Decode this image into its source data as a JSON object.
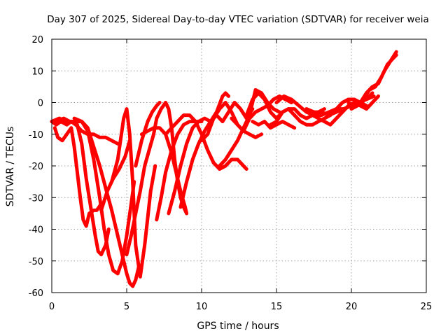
{
  "chart_data": {
    "type": "scatter",
    "title": "Day 307 of 2025, Sidereal Day-to-day VTEC variation (SDTVAR) for receiver weia",
    "xlabel": "GPS time / hours",
    "ylabel": "SDTVAR / TECUs",
    "xlim": [
      0,
      25
    ],
    "ylim": [
      -60,
      20
    ],
    "xticks": [
      "0",
      "5",
      "10",
      "15",
      "20",
      "25"
    ],
    "yticks": [
      "-60",
      "-50",
      "-40",
      "-30",
      "-20",
      "-10",
      "0",
      "10",
      "20"
    ],
    "grid": true,
    "legend": "none",
    "marker": "plus",
    "color": "#ff0000",
    "series": [
      {
        "x": [
          0.0,
          0.3,
          0.6,
          1.0,
          1.3,
          1.6,
          2.0,
          2.4,
          2.8,
          3.2,
          3.6,
          4.0,
          4.4
        ],
        "y": [
          -6,
          -7,
          -6,
          -7,
          -6,
          -7,
          -9,
          -10,
          -10,
          -11,
          -11,
          -12,
          -13
        ]
      },
      {
        "x": [
          0.2,
          0.4,
          0.7,
          1.0,
          1.3,
          1.5,
          1.7,
          1.9,
          2.1,
          2.3,
          2.5,
          2.8,
          3.0,
          3.3
        ],
        "y": [
          -8,
          -11,
          -12,
          -10,
          -8,
          -14,
          -22,
          -30,
          -37,
          -39,
          -35,
          -34,
          -34,
          -32
        ]
      },
      {
        "x": [
          0.0,
          0.5,
          1.0,
          1.4,
          1.7,
          2.0,
          2.3,
          2.6,
          2.9,
          3.1,
          3.3,
          3.6,
          3.8
        ],
        "y": [
          -6,
          -5,
          -6,
          -6,
          -7,
          -13,
          -24,
          -33,
          -42,
          -47,
          -48,
          -45,
          -40
        ]
      },
      {
        "x": [
          0.3,
          0.8,
          1.2,
          1.6,
          2.0,
          2.4,
          2.8,
          3.2,
          3.5,
          3.8,
          4.1,
          4.4,
          4.7,
          5.0,
          5.3,
          5.5
        ],
        "y": [
          -6,
          -5,
          -6,
          -6,
          -6,
          -9,
          -18,
          -30,
          -40,
          -48,
          -53,
          -54,
          -50,
          -42,
          -32,
          -25
        ]
      },
      {
        "x": [
          1.5,
          2.0,
          2.4,
          2.8,
          3.2,
          3.6,
          4.0,
          4.3,
          4.6,
          4.8,
          5.0,
          5.2,
          5.4,
          5.6,
          5.8
        ],
        "y": [
          -5,
          -6,
          -8,
          -14,
          -20,
          -27,
          -34,
          -40,
          -46,
          -50,
          -54,
          -57,
          -58,
          -56,
          -52
        ]
      },
      {
        "x": [
          3.3,
          3.7,
          4.1,
          4.5,
          4.9,
          5.2
        ],
        "y": [
          -34,
          -28,
          -24,
          -21,
          -17,
          -12
        ]
      },
      {
        "x": [
          4.0,
          4.4,
          4.8,
          5.0,
          5.2,
          5.4,
          5.6,
          5.9,
          6.2,
          6.6,
          6.9
        ],
        "y": [
          -25,
          -18,
          -5,
          -2,
          -10,
          -25,
          -45,
          -55,
          -45,
          -28,
          -20
        ]
      },
      {
        "x": [
          5.0,
          5.3,
          5.6,
          5.9,
          6.2,
          6.5,
          6.8,
          7.0,
          7.3,
          7.6,
          7.8,
          8.0,
          8.2,
          8.4,
          8.6,
          8.8,
          9.0
        ],
        "y": [
          -48,
          -42,
          -35,
          -28,
          -20,
          -15,
          -10,
          -5,
          -2,
          0,
          -2,
          -8,
          -18,
          -25,
          -30,
          -33,
          -35
        ]
      },
      {
        "x": [
          5.6,
          6.0,
          6.4,
          6.7,
          7.0,
          7.2
        ],
        "y": [
          -20,
          -12,
          -6,
          -3,
          -1,
          0
        ]
      },
      {
        "x": [
          6.0,
          6.4,
          6.8,
          7.2,
          7.6,
          8.0,
          8.3,
          8.6,
          8.9,
          9.0
        ],
        "y": [
          -10,
          -9,
          -8,
          -8,
          -10,
          -16,
          -22,
          -28,
          -33,
          -35
        ]
      },
      {
        "x": [
          7.0,
          7.3,
          7.6,
          8.0,
          8.4,
          8.8,
          9.2,
          9.6,
          10.0
        ],
        "y": [
          -37,
          -30,
          -22,
          -15,
          -10,
          -7,
          -6,
          -6,
          -6
        ]
      },
      {
        "x": [
          7.6,
          8.0,
          8.4,
          8.8,
          9.2,
          9.6,
          10.0,
          10.4,
          10.8,
          11.2,
          11.6,
          12.0,
          12.4,
          12.8,
          13.0
        ],
        "y": [
          -10,
          -8,
          -6,
          -4,
          -4,
          -6,
          -10,
          -15,
          -19,
          -21,
          -20,
          -18,
          -18,
          -20,
          -21
        ]
      },
      {
        "x": [
          7.8,
          8.2,
          8.6,
          9.0,
          9.4,
          9.8,
          10.2,
          10.6,
          11.0,
          11.4,
          11.6,
          11.8
        ],
        "y": [
          -35,
          -28,
          -20,
          -13,
          -8,
          -6,
          -5,
          -6,
          -3,
          2,
          3,
          2
        ]
      },
      {
        "x": [
          8.6,
          9.0,
          9.4,
          9.8,
          10.2,
          10.6,
          11.0,
          11.4,
          11.8,
          12.2,
          12.6,
          13.0,
          13.4
        ],
        "y": [
          -33,
          -25,
          -18,
          -13,
          -9,
          -6,
          -4,
          -6,
          -3,
          0,
          -2,
          -5,
          -2
        ]
      },
      {
        "x": [
          10.0,
          10.4,
          10.8,
          11.2,
          11.6,
          12.0,
          12.4,
          12.8,
          13.2,
          13.6,
          14.0
        ],
        "y": [
          -12,
          -10,
          -5,
          -2,
          0,
          -3,
          -7,
          -9,
          -10,
          -11,
          -10
        ]
      },
      {
        "x": [
          11.2,
          11.6,
          12.0,
          12.4,
          12.8,
          13.2,
          13.6,
          14.0,
          14.4,
          14.8,
          15.2
        ],
        "y": [
          -20,
          -18,
          -15,
          -12,
          -8,
          -4,
          4,
          3,
          0,
          -2,
          -3
        ]
      },
      {
        "x": [
          12.0,
          12.4,
          12.8,
          13.2,
          13.6,
          14.0,
          14.4,
          14.8,
          15.2,
          15.6,
          16.0
        ],
        "y": [
          -5,
          -7,
          -9,
          -5,
          -3,
          -2,
          -1,
          1,
          2,
          1,
          0
        ]
      },
      {
        "x": [
          13.0,
          13.4,
          13.8,
          14.2,
          14.6,
          15.0,
          15.4,
          15.8,
          16.2,
          16.6,
          17.0,
          17.4,
          17.8,
          18.2
        ],
        "y": [
          -4,
          1,
          3,
          1,
          -3,
          -5,
          -3,
          -2,
          -2,
          -4,
          -5,
          -4,
          -3,
          -2
        ]
      },
      {
        "x": [
          13.4,
          13.8,
          14.2,
          14.6,
          15.0,
          15.4,
          15.8,
          16.2
        ],
        "y": [
          -6,
          -7,
          -6,
          -8,
          -7,
          -6,
          -7,
          -8
        ]
      },
      {
        "x": [
          14.6,
          15.0,
          15.4,
          15.8,
          16.2,
          16.6,
          17.0,
          17.4,
          17.8,
          18.2,
          18.6,
          19.0,
          19.4,
          19.8,
          20.2,
          20.6,
          21.0
        ],
        "y": [
          -7,
          -6,
          -3,
          -2,
          -4,
          -6,
          -7,
          -7,
          -6,
          -5,
          -4,
          -2,
          0,
          1,
          1,
          0,
          -1
        ]
      },
      {
        "x": [
          15.0,
          15.5,
          16.0,
          16.5,
          17.0,
          17.5,
          18.0,
          18.5,
          19.0,
          19.5,
          20.0,
          20.5,
          21.0,
          21.4
        ],
        "y": [
          0,
          2,
          1,
          -1,
          -3,
          -4,
          -4,
          -3,
          -2,
          -2,
          -1,
          0,
          1,
          3
        ]
      },
      {
        "x": [
          17.0,
          17.5,
          18.0,
          18.5,
          19.0,
          19.5,
          20.0,
          20.5,
          21.0,
          21.5
        ],
        "y": [
          -2,
          -3,
          -3,
          -4,
          -3,
          -2,
          -1,
          0,
          1,
          2
        ]
      },
      {
        "x": [
          17.4,
          17.8,
          18.2,
          18.6,
          19.0,
          19.4,
          19.8,
          20.2,
          20.6,
          21.0,
          21.4,
          21.8
        ],
        "y": [
          -4,
          -5,
          -6,
          -7,
          -5,
          -3,
          -1,
          0,
          -1,
          -2,
          0,
          2
        ]
      },
      {
        "x": [
          19.8,
          20.2,
          20.6,
          21.0,
          21.4,
          21.8,
          22.2,
          22.6,
          23.0
        ],
        "y": [
          0,
          -1,
          0,
          3,
          5,
          6,
          10,
          13,
          16
        ]
      },
      {
        "x": [
          20.0,
          20.4,
          20.8,
          21.2,
          21.6,
          22.0,
          22.4,
          22.8,
          23.0
        ],
        "y": [
          -2,
          -1,
          1,
          4,
          5,
          8,
          12,
          14,
          15
        ]
      }
    ]
  }
}
